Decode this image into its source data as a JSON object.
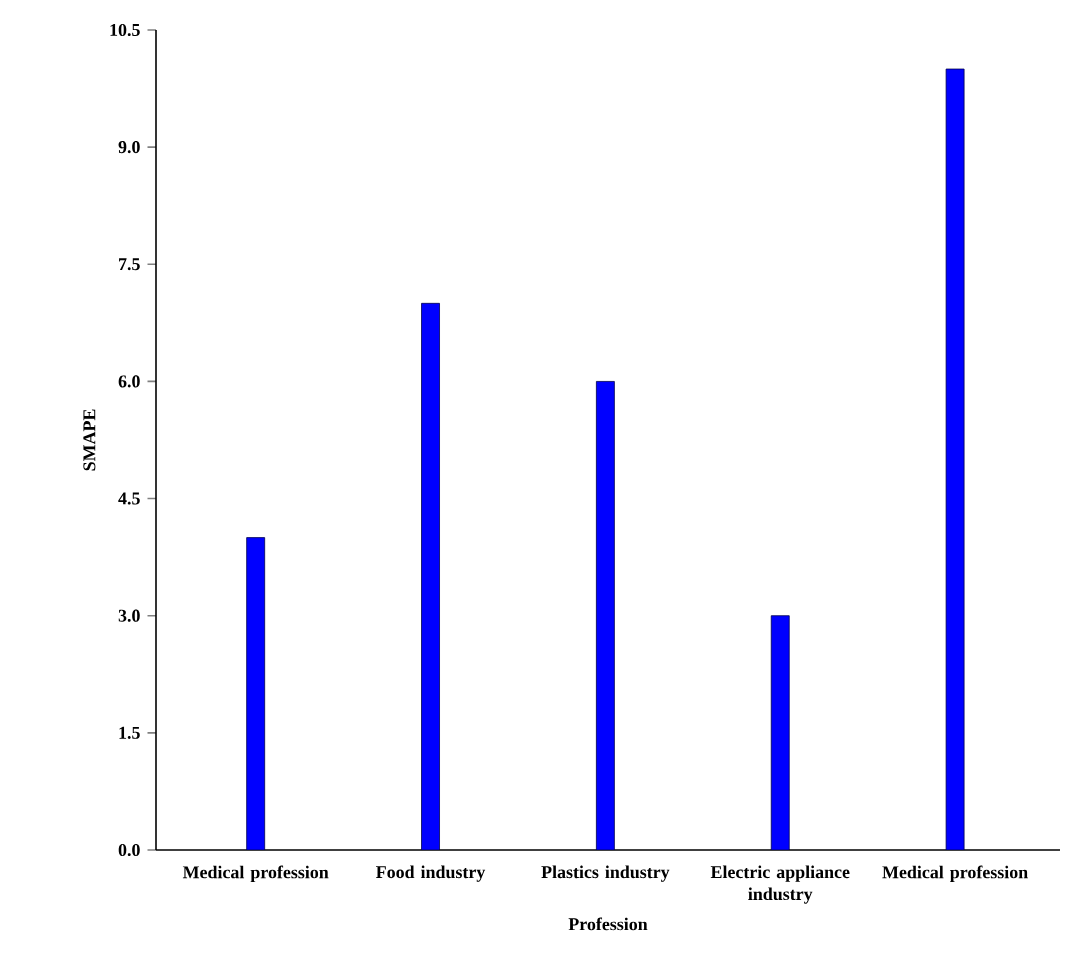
{
  "chart_data": {
    "type": "bar",
    "xlabel": "Profession",
    "ylabel": "SMAPE",
    "categories": [
      "Medical profession",
      "Food industry",
      "Plastics industry",
      "Electric appliance industry",
      "Medical profession"
    ],
    "values": [
      4.0,
      7.0,
      6.0,
      3.0,
      10.0
    ],
    "color": "#0000ff",
    "ylim": [
      0,
      10.5
    ],
    "yticks": [
      {
        "value": 0,
        "label": "0.0"
      },
      {
        "value": 1.5,
        "label": "1.5"
      },
      {
        "value": 3,
        "label": "3.0"
      },
      {
        "value": 4.5,
        "label": "4.5"
      },
      {
        "value": 6,
        "label": "6.0"
      },
      {
        "value": 7.5,
        "label": "7.5"
      },
      {
        "value": 9,
        "label": "9.0"
      },
      {
        "value": 10.5,
        "label": "10.5"
      }
    ],
    "grid": false
  }
}
